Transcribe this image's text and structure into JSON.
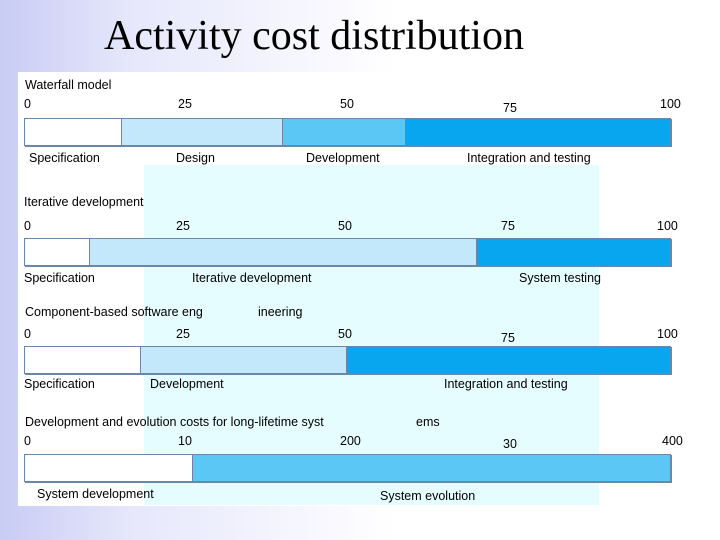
{
  "slide": {
    "title": "Activity cost distribution",
    "colors": {
      "white": "#ffffff",
      "light": "#c3e8fb",
      "medium": "#5bc7f5",
      "dark": "#08a6ee",
      "panel": "#e6fdff"
    }
  },
  "diagram": {
    "waterfall": {
      "heading": "Waterfall model",
      "scale": [
        "0",
        "25",
        "50",
        "75",
        "100"
      ],
      "segments": [
        {
          "label": "Specification",
          "share": 15,
          "color": "white"
        },
        {
          "label": "Design",
          "share": 25,
          "color": "light"
        },
        {
          "label": "Development",
          "share": 19,
          "color": "medium"
        },
        {
          "label": "Integration and testing",
          "share": 41,
          "color": "dark"
        }
      ]
    },
    "iterative": {
      "heading": "Iterative development",
      "scale": [
        "0",
        "25",
        "50",
        "75",
        "100"
      ],
      "segments": [
        {
          "label": "Specification",
          "share": 10,
          "color": "white"
        },
        {
          "label": "Iterative development",
          "share": 60,
          "color": "light"
        },
        {
          "label": "System testing",
          "share": 30,
          "color": "dark"
        }
      ]
    },
    "component": {
      "heading": "Component-based software eng",
      "heading_cont": "ineering",
      "scale": [
        "0",
        "25",
        "50",
        "75",
        "100"
      ],
      "segments": [
        {
          "label": "Specification",
          "share": 18,
          "color": "white"
        },
        {
          "label": "Development",
          "share": 32,
          "color": "light"
        },
        {
          "label": "Integration and testing",
          "share": 50,
          "color": "dark"
        }
      ]
    },
    "evolution": {
      "heading": "Development and evolution costs for long-lifetime syst",
      "heading_cont": "ems",
      "scale": [
        "0",
        "10",
        "200",
        "30",
        "400"
      ],
      "segments": [
        {
          "label": "System development",
          "share": 26,
          "color": "white"
        },
        {
          "label": "System evolution",
          "share": 74,
          "color": "medium"
        }
      ]
    }
  }
}
